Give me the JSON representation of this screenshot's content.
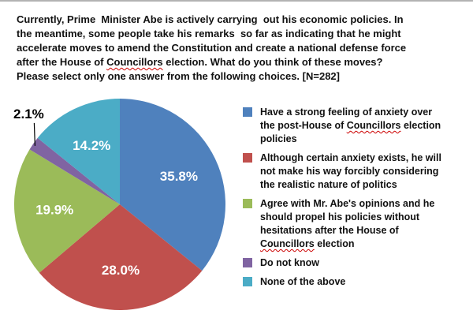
{
  "title": {
    "full_text": "Currently, Prime Minister Abe is actively carrying out his economic policies. In the meantime, some people take his remarks so far as indicating that he might accelerate moves to amend the Constitution and create a national defense force after the House of Councillors election. What do you think of these moves? Please select only one answer from the following choices. [N=282]",
    "lines": [
      [
        {
          "text": "Currently, Prime  Minister Abe is actively carrying  out his economic policies. In"
        }
      ],
      [
        {
          "text": "the meantime, some people take his remarks  so far as indicating that he might"
        }
      ],
      [
        {
          "text": "accelerate moves to amend the Constitution and create a national defense force"
        }
      ],
      [
        {
          "text": "after the House of "
        },
        {
          "text": "Councillors",
          "misspelled": true
        },
        {
          "text": " election. What do you think of these moves?"
        }
      ],
      [
        {
          "text": "Please select only one answer from the following choices. [N=282]"
        }
      ]
    ]
  },
  "sample_size": "N=282",
  "spellcheck_underline_color": "#cc0000",
  "chart_data": {
    "type": "pie",
    "title": "Currently, Prime Minister Abe is actively carrying out his economic policies. In the meantime, some people take his remarks so far as indicating that he might accelerate moves to amend the Constitution and create a national defense force after the House of Councillors election. What do you think of these moves? Please select only one answer from the following choices. [N=282]",
    "start_angle_deg": 0,
    "direction": "clockwise",
    "legend_position": "right",
    "categories": [
      "Have a strong feeling of anxiety over the post-House of Councillors election policies",
      "Although certain anxiety exists, he will not make his way forcibly considering the realistic nature of politics",
      "Agree with Mr. Abe's opinions and he should propel his policies without hesitations after the House of Councillors election",
      "Do not know",
      "None of the above"
    ],
    "values": [
      35.8,
      28.0,
      19.9,
      2.1,
      14.2
    ],
    "slices": [
      {
        "value": 35.8,
        "display": "35.8%",
        "color": "#4F81BD",
        "label": "Have a strong feeling of anxiety over the post-House of Councillors election policies",
        "legend_lines": [
          [
            {
              "text": "Have a strong feeling of anxiety over"
            }
          ],
          [
            {
              "text": "the post-House of "
            },
            {
              "text": "Councillors",
              "misspelled": true
            },
            {
              "text": " election"
            }
          ],
          [
            {
              "text": "policies"
            }
          ]
        ]
      },
      {
        "value": 28.0,
        "display": "28.0%",
        "color": "#C0504D",
        "label": "Although certain anxiety exists, he will not make his way forcibly considering the realistic nature of politics",
        "legend_lines": [
          [
            {
              "text": "Although certain anxiety exists, he will"
            }
          ],
          [
            {
              "text": "not make his way forcibly considering"
            }
          ],
          [
            {
              "text": "the realistic nature of politics"
            }
          ]
        ]
      },
      {
        "value": 19.9,
        "display": "19.9%",
        "color": "#9BBB59",
        "label": "Agree with Mr. Abe's opinions and he should propel his policies without hesitations after the House of Councillors election",
        "legend_lines": [
          [
            {
              "text": "Agree with Mr. Abe's opinions and he"
            }
          ],
          [
            {
              "text": "should propel his policies without"
            }
          ],
          [
            {
              "text": "hesitations after the House of"
            }
          ],
          [
            {
              "text": "Councillors",
              "misspelled": true
            },
            {
              "text": " election"
            }
          ]
        ]
      },
      {
        "value": 2.1,
        "display": "2.1%",
        "color": "#8064A2",
        "label": "Do not know",
        "legend_lines": [
          [
            {
              "text": "Do not know"
            }
          ]
        ]
      },
      {
        "value": 14.2,
        "display": "14.2%",
        "color": "#4BACC6",
        "label": "None of the above",
        "legend_lines": [
          [
            {
              "text": "None of the above"
            }
          ]
        ]
      }
    ]
  }
}
